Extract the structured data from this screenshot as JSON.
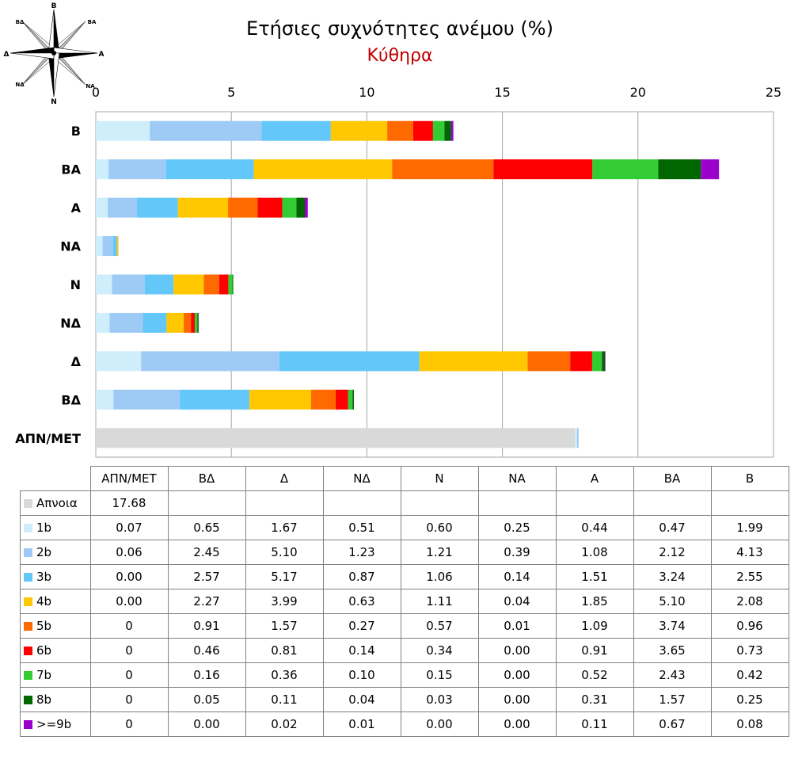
{
  "title": "Ετήσιες συχνότητες ανέμου (%)",
  "subtitle": "Κύθηρα",
  "compass": {
    "n": "Β",
    "ne": "ΒΑ",
    "e": "Α",
    "se": "ΝΑ",
    "s": "Ν",
    "sw": "ΝΔ",
    "w": "Δ",
    "nw": "ΒΔ"
  },
  "colors": {
    "title": "#000000",
    "subtitle": "#c00000",
    "grid": "#a6a6a6"
  },
  "table": {
    "columns": [
      "ΑΠΝ/ΜΕΤ",
      "ΒΔ",
      "Δ",
      "ΝΔ",
      "Ν",
      "ΝΑ",
      "Α",
      "ΒΑ",
      "Β"
    ],
    "rows": [
      {
        "label": "Απνοια",
        "color": "#d9d9d9",
        "cells": [
          "17.68",
          "",
          "",
          "",
          "",
          "",
          "",
          "",
          ""
        ]
      },
      {
        "label": "1b",
        "color": "#cfeefb",
        "cells": [
          "0.07",
          "0.65",
          "1.67",
          "0.51",
          "0.60",
          "0.25",
          "0.44",
          "0.47",
          "1.99"
        ]
      },
      {
        "label": "2b",
        "color": "#9dcbf5",
        "cells": [
          "0.06",
          "2.45",
          "5.10",
          "1.23",
          "1.21",
          "0.39",
          "1.08",
          "2.12",
          "4.13"
        ]
      },
      {
        "label": "3b",
        "color": "#63c7fa",
        "cells": [
          "0.00",
          "2.57",
          "5.17",
          "0.87",
          "1.06",
          "0.14",
          "1.51",
          "3.24",
          "2.55"
        ]
      },
      {
        "label": "4b",
        "color": "#ffc800",
        "cells": [
          "0.00",
          "2.27",
          "3.99",
          "0.63",
          "1.11",
          "0.04",
          "1.85",
          "5.10",
          "2.08"
        ]
      },
      {
        "label": "5b",
        "color": "#ff6a00",
        "cells": [
          "0",
          "0.91",
          "1.57",
          "0.27",
          "0.57",
          "0.01",
          "1.09",
          "3.74",
          "0.96"
        ]
      },
      {
        "label": "6b",
        "color": "#ff0000",
        "cells": [
          "0",
          "0.46",
          "0.81",
          "0.14",
          "0.34",
          "0.00",
          "0.91",
          "3.65",
          "0.73"
        ]
      },
      {
        "label": "7b",
        "color": "#33cc33",
        "cells": [
          "0",
          "0.16",
          "0.36",
          "0.10",
          "0.15",
          "0.00",
          "0.52",
          "2.43",
          "0.42"
        ]
      },
      {
        "label": "8b",
        "color": "#006600",
        "cells": [
          "0",
          "0.05",
          "0.11",
          "0.04",
          "0.03",
          "0.00",
          "0.31",
          "1.57",
          "0.25"
        ]
      },
      {
        "label": ">=9b",
        "color": "#9900cc",
        "cells": [
          "0",
          "0.00",
          "0.02",
          "0.01",
          "0.00",
          "0.00",
          "0.11",
          "0.67",
          "0.08"
        ]
      }
    ]
  },
  "chart_data": {
    "type": "bar",
    "orientation": "horizontal",
    "stacked": true,
    "title": "Ετήσιες συχνότητες ανέμου (%)",
    "subtitle": "Κύθηρα",
    "xlim": [
      0,
      25
    ],
    "xticks": [
      0,
      5,
      10,
      15,
      20,
      25
    ],
    "grid": true,
    "categories": [
      "Β",
      "ΒΑ",
      "Α",
      "ΝΑ",
      "Ν",
      "ΝΔ",
      "Δ",
      "ΒΔ",
      "ΑΠΝ/ΜΕΤ"
    ],
    "series": [
      {
        "name": "Απνοια",
        "color": "#d9d9d9",
        "values": [
          0,
          0,
          0,
          0,
          0,
          0,
          0,
          0,
          17.68
        ]
      },
      {
        "name": "1b",
        "color": "#cfeefb",
        "values": [
          1.99,
          0.47,
          0.44,
          0.25,
          0.6,
          0.51,
          1.67,
          0.65,
          0.07
        ]
      },
      {
        "name": "2b",
        "color": "#9dcbf5",
        "values": [
          4.13,
          2.12,
          1.08,
          0.39,
          1.21,
          1.23,
          5.1,
          2.45,
          0.06
        ]
      },
      {
        "name": "3b",
        "color": "#63c7fa",
        "values": [
          2.55,
          3.24,
          1.51,
          0.14,
          1.06,
          0.87,
          5.17,
          2.57,
          0.0
        ]
      },
      {
        "name": "4b",
        "color": "#ffc800",
        "values": [
          2.08,
          5.1,
          1.85,
          0.04,
          1.11,
          0.63,
          3.99,
          2.27,
          0.0
        ]
      },
      {
        "name": "5b",
        "color": "#ff6a00",
        "values": [
          0.96,
          3.74,
          1.09,
          0.01,
          0.57,
          0.27,
          1.57,
          0.91,
          0
        ]
      },
      {
        "name": "6b",
        "color": "#ff0000",
        "values": [
          0.73,
          3.65,
          0.91,
          0.0,
          0.34,
          0.14,
          0.81,
          0.46,
          0
        ]
      },
      {
        "name": "7b",
        "color": "#33cc33",
        "values": [
          0.42,
          2.43,
          0.52,
          0.0,
          0.15,
          0.1,
          0.36,
          0.16,
          0
        ]
      },
      {
        "name": "8b",
        "color": "#006600",
        "values": [
          0.25,
          1.57,
          0.31,
          0.0,
          0.03,
          0.04,
          0.11,
          0.05,
          0
        ]
      },
      {
        "name": ">=9b",
        "color": "#9900cc",
        "values": [
          0.08,
          0.67,
          0.11,
          0.0,
          0.0,
          0.01,
          0.02,
          0.0,
          0
        ]
      }
    ]
  }
}
